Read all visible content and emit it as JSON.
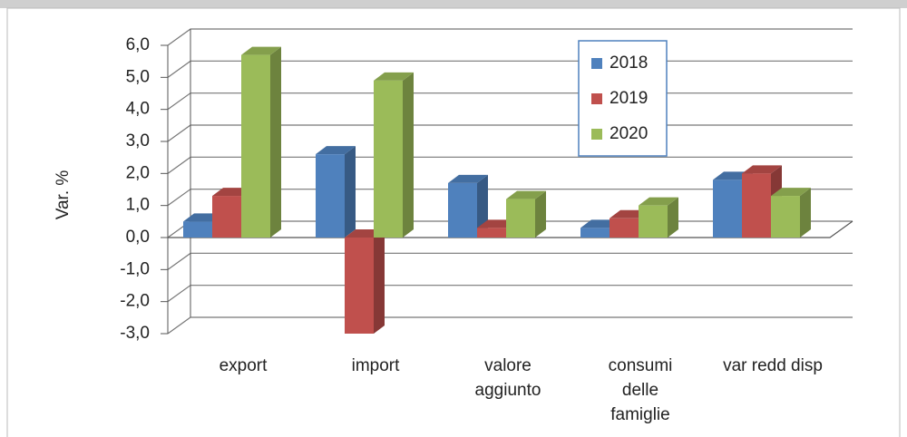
{
  "chart_data": {
    "type": "bar3d",
    "y_label": "Var. %",
    "categories": [
      "export",
      "import",
      "valore\naggiunto",
      "consumi\ndelle\nfamiglie",
      "var redd disp"
    ],
    "series": [
      {
        "name": "2018",
        "color": "#4f81bd",
        "values": [
          0.5,
          2.6,
          1.7,
          0.3,
          1.8
        ]
      },
      {
        "name": "2019",
        "color": "#c0504d",
        "values": [
          1.3,
          -3.0,
          0.3,
          0.6,
          2.0
        ]
      },
      {
        "name": "2020",
        "color": "#9bbb59",
        "values": [
          5.7,
          4.9,
          1.2,
          1.0,
          1.3
        ]
      }
    ],
    "ylim": [
      -3,
      6
    ],
    "yticks": [
      {
        "value": -3,
        "label": "-3,0"
      },
      {
        "value": -2,
        "label": "-2,0"
      },
      {
        "value": -1,
        "label": "-1,0"
      },
      {
        "value": 0,
        "label": "0,0"
      },
      {
        "value": 1,
        "label": "1,0"
      },
      {
        "value": 2,
        "label": "2,0"
      },
      {
        "value": 3,
        "label": "3,0"
      },
      {
        "value": 4,
        "label": "4,0"
      },
      {
        "value": 5,
        "label": "5,0"
      },
      {
        "value": 6,
        "label": "6,0"
      }
    ],
    "grid": true
  }
}
